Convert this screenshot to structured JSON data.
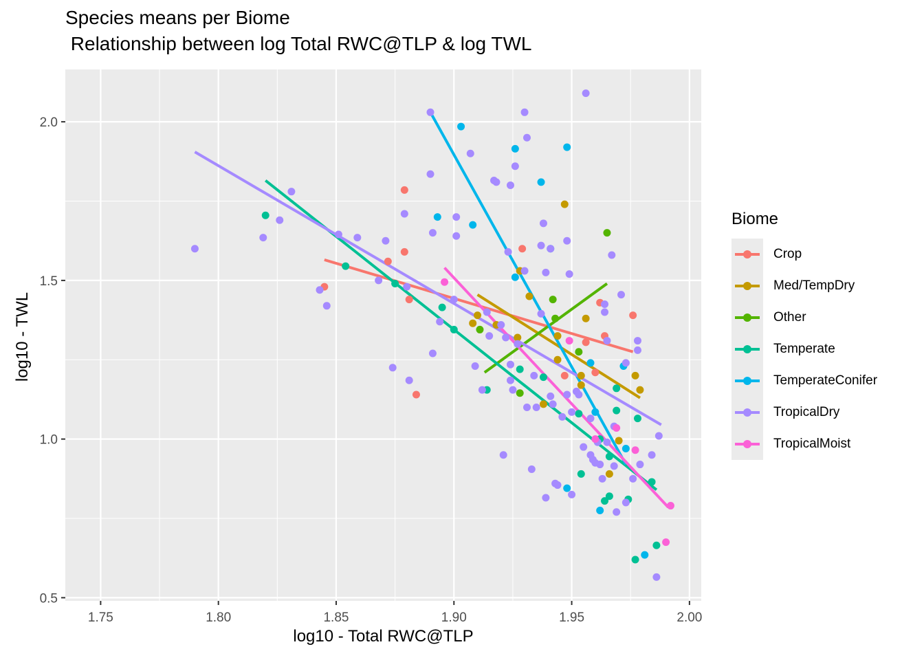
{
  "chart_data": {
    "type": "scatter",
    "title": "Species means per Biome",
    "subtitle": " Relationship between log Total RWC@TLP & log TWL",
    "xlabel": "log10 - Total RWC@TLP",
    "ylabel": "log10 - TWL",
    "xlim": [
      1.735,
      2.005
    ],
    "ylim": [
      0.49,
      2.165
    ],
    "xticks": [
      "1.75",
      "1.80",
      "1.85",
      "1.90",
      "1.95",
      "2.00"
    ],
    "yticks": [
      "0.5",
      "1.0",
      "1.5",
      "2.0"
    ],
    "grid": true,
    "legend_title": "Biome",
    "legend_position": "right",
    "series": [
      {
        "name": "Crop",
        "color": "#F8766D",
        "line": [
          [
            1.845,
            1.565
          ],
          [
            1.976,
            1.275
          ]
        ],
        "points": [
          [
            1.879,
            1.785
          ],
          [
            1.845,
            1.48
          ],
          [
            1.872,
            1.56
          ],
          [
            1.879,
            1.59
          ],
          [
            1.929,
            1.6
          ],
          [
            1.881,
            1.44
          ],
          [
            1.884,
            1.14
          ],
          [
            1.962,
            1.43
          ],
          [
            1.976,
            1.39
          ],
          [
            1.964,
            1.325
          ],
          [
            1.96,
            1.21
          ],
          [
            1.956,
            1.305
          ],
          [
            1.947,
            1.2
          ]
        ]
      },
      {
        "name": "Med/TempDry",
        "color": "#C49A00",
        "line": [
          [
            1.91,
            1.455
          ],
          [
            1.979,
            1.13
          ]
        ],
        "points": [
          [
            1.947,
            1.74
          ],
          [
            1.928,
            1.53
          ],
          [
            1.932,
            1.45
          ],
          [
            1.91,
            1.39
          ],
          [
            1.908,
            1.365
          ],
          [
            1.918,
            1.36
          ],
          [
            1.927,
            1.32
          ],
          [
            1.944,
            1.325
          ],
          [
            1.956,
            1.38
          ],
          [
            1.944,
            1.25
          ],
          [
            1.954,
            1.2
          ],
          [
            1.954,
            1.17
          ],
          [
            1.977,
            1.2
          ],
          [
            1.979,
            1.155
          ],
          [
            1.938,
            1.11
          ],
          [
            1.966,
            0.89
          ],
          [
            1.97,
            0.995
          ]
        ]
      },
      {
        "name": "Other",
        "color": "#53B400",
        "line": [
          [
            1.913,
            1.21
          ],
          [
            1.965,
            1.49
          ]
        ],
        "points": [
          [
            1.965,
            1.65
          ],
          [
            1.942,
            1.44
          ],
          [
            1.911,
            1.345
          ],
          [
            1.943,
            1.38
          ],
          [
            1.953,
            1.275
          ],
          [
            1.928,
            1.145
          ]
        ]
      },
      {
        "name": "Temperate",
        "color": "#00C094",
        "line": [
          [
            1.82,
            1.815
          ],
          [
            1.986,
            0.84
          ]
        ],
        "points": [
          [
            1.82,
            1.705
          ],
          [
            1.854,
            1.545
          ],
          [
            1.875,
            1.49
          ],
          [
            1.895,
            1.415
          ],
          [
            1.9,
            1.345
          ],
          [
            1.914,
            1.155
          ],
          [
            1.928,
            1.22
          ],
          [
            1.938,
            1.195
          ],
          [
            1.953,
            1.08
          ],
          [
            1.962,
            1.0
          ],
          [
            1.966,
            0.945
          ],
          [
            1.969,
            1.09
          ],
          [
            1.969,
            1.16
          ],
          [
            1.978,
            1.065
          ],
          [
            1.954,
            0.89
          ],
          [
            1.964,
            0.805
          ],
          [
            1.966,
            0.82
          ],
          [
            1.974,
            0.81
          ],
          [
            1.984,
            0.865
          ],
          [
            1.977,
            0.62
          ],
          [
            1.986,
            0.665
          ]
        ]
      },
      {
        "name": "TemperateConifer",
        "color": "#00B6EB",
        "line": [
          [
            1.89,
            2.03
          ],
          [
            1.973,
            0.92
          ]
        ],
        "points": [
          [
            1.903,
            1.985
          ],
          [
            1.926,
            1.915
          ],
          [
            1.948,
            1.92
          ],
          [
            1.937,
            1.81
          ],
          [
            1.893,
            1.7
          ],
          [
            1.908,
            1.675
          ],
          [
            1.941,
            1.6
          ],
          [
            1.926,
            1.51
          ],
          [
            1.958,
            1.24
          ],
          [
            1.972,
            1.23
          ],
          [
            1.96,
            1.085
          ],
          [
            1.973,
            0.97
          ],
          [
            1.948,
            0.845
          ],
          [
            1.962,
            0.775
          ],
          [
            1.981,
            0.635
          ]
        ]
      },
      {
        "name": "TropicalDry",
        "color": "#A58AFF",
        "line": [
          [
            1.79,
            1.905
          ],
          [
            1.988,
            1.045
          ]
        ],
        "points": [
          [
            1.79,
            1.6
          ],
          [
            1.819,
            1.635
          ],
          [
            1.826,
            1.69
          ],
          [
            1.831,
            1.78
          ],
          [
            1.843,
            1.47
          ],
          [
            1.846,
            1.42
          ],
          [
            1.851,
            1.645
          ],
          [
            1.859,
            1.635
          ],
          [
            1.868,
            1.5
          ],
          [
            1.871,
            1.625
          ],
          [
            1.874,
            1.225
          ],
          [
            1.879,
            1.71
          ],
          [
            1.88,
            1.48
          ],
          [
            1.881,
            1.185
          ],
          [
            1.89,
            2.03
          ],
          [
            1.89,
            1.835
          ],
          [
            1.891,
            1.65
          ],
          [
            1.891,
            1.27
          ],
          [
            1.894,
            1.37
          ],
          [
            1.9,
            1.44
          ],
          [
            1.901,
            1.7
          ],
          [
            1.901,
            1.64
          ],
          [
            1.907,
            1.9
          ],
          [
            1.909,
            1.23
          ],
          [
            1.912,
            1.155
          ],
          [
            1.914,
            1.4
          ],
          [
            1.915,
            1.325
          ],
          [
            1.917,
            1.815
          ],
          [
            1.918,
            1.81
          ],
          [
            1.92,
            1.36
          ],
          [
            1.921,
            0.95
          ],
          [
            1.922,
            1.32
          ],
          [
            1.923,
            1.59
          ],
          [
            1.924,
            1.8
          ],
          [
            1.924,
            1.235
          ],
          [
            1.924,
            1.185
          ],
          [
            1.925,
            1.155
          ],
          [
            1.926,
            1.86
          ],
          [
            1.927,
            1.3
          ],
          [
            1.93,
            2.03
          ],
          [
            1.93,
            1.53
          ],
          [
            1.931,
            1.95
          ],
          [
            1.931,
            1.1
          ],
          [
            1.933,
            0.905
          ],
          [
            1.934,
            1.2
          ],
          [
            1.935,
            1.1
          ],
          [
            1.937,
            1.395
          ],
          [
            1.937,
            1.61
          ],
          [
            1.938,
            1.68
          ],
          [
            1.939,
            1.525
          ],
          [
            1.939,
            0.815
          ],
          [
            1.941,
            1.6
          ],
          [
            1.941,
            1.135
          ],
          [
            1.942,
            1.11
          ],
          [
            1.943,
            0.86
          ],
          [
            1.944,
            0.855
          ],
          [
            1.946,
            1.07
          ],
          [
            1.948,
            1.625
          ],
          [
            1.948,
            1.14
          ],
          [
            1.949,
            1.52
          ],
          [
            1.95,
            1.085
          ],
          [
            1.95,
            0.825
          ],
          [
            1.952,
            1.15
          ],
          [
            1.953,
            1.14
          ],
          [
            1.955,
            0.975
          ],
          [
            1.956,
            2.09
          ],
          [
            1.958,
            1.065
          ],
          [
            1.958,
            0.95
          ],
          [
            1.959,
            0.935
          ],
          [
            1.96,
            0.925
          ],
          [
            1.961,
            0.99
          ],
          [
            1.962,
            0.92
          ],
          [
            1.963,
            0.875
          ],
          [
            1.964,
            1.425
          ],
          [
            1.964,
            1.4
          ],
          [
            1.965,
            1.31
          ],
          [
            1.965,
            0.99
          ],
          [
            1.967,
            1.58
          ],
          [
            1.968,
            1.04
          ],
          [
            1.968,
            0.915
          ],
          [
            1.969,
            0.77
          ],
          [
            1.971,
            1.455
          ],
          [
            1.973,
            1.24
          ],
          [
            1.973,
            0.8
          ],
          [
            1.976,
            0.875
          ],
          [
            1.978,
            1.31
          ],
          [
            1.978,
            1.28
          ],
          [
            1.979,
            0.92
          ],
          [
            1.984,
            0.95
          ],
          [
            1.986,
            0.565
          ],
          [
            1.987,
            1.01
          ]
        ]
      },
      {
        "name": "TropicalMoist",
        "color": "#FB61D7",
        "line": [
          [
            1.896,
            1.54
          ],
          [
            1.991,
            0.785
          ]
        ],
        "points": [
          [
            1.896,
            1.495
          ],
          [
            1.949,
            1.31
          ],
          [
            1.96,
            1.0
          ],
          [
            1.969,
            1.035
          ],
          [
            1.977,
            0.965
          ],
          [
            1.992,
            0.79
          ],
          [
            1.99,
            0.675
          ]
        ]
      }
    ]
  }
}
